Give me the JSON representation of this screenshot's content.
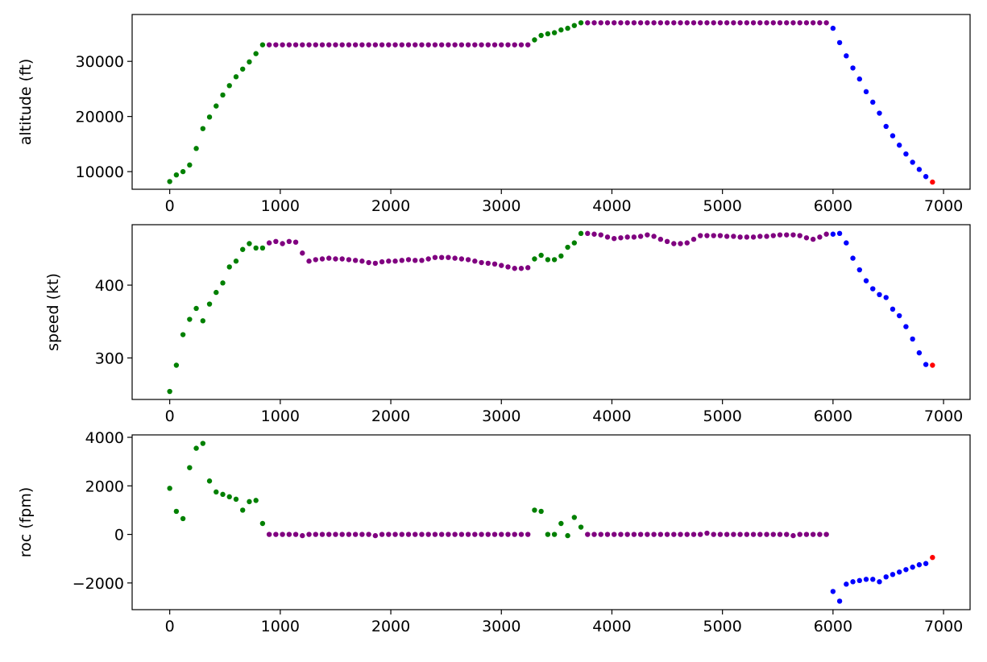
{
  "chart_data": [
    {
      "type": "scatter",
      "title": "",
      "xlabel": "",
      "ylabel": "altitude (ft)",
      "xlim": [
        -340,
        7240
      ],
      "ylim": [
        6800,
        38500
      ],
      "xticks": [
        0,
        1000,
        2000,
        3000,
        4000,
        5000,
        6000,
        7000
      ],
      "xtick_labels": [
        "0",
        "1000",
        "2000",
        "3000",
        "4000",
        "5000",
        "6000",
        "7000"
      ],
      "yticks": [
        10000,
        20000,
        30000
      ],
      "ytick_labels": [
        "10000",
        "20000",
        "30000"
      ],
      "grid": false,
      "series": [
        {
          "color": "#008000",
          "x": [
            0,
            60,
            120,
            180,
            240,
            300,
            360,
            420,
            480,
            540,
            600,
            660,
            720,
            780,
            840,
            3300,
            3360,
            3420,
            3480,
            3540,
            3600,
            3660,
            3720
          ],
          "y": [
            8200,
            9400,
            10000,
            11200,
            14200,
            17800,
            19900,
            21900,
            23900,
            25600,
            27200,
            28600,
            29900,
            31400,
            33000,
            33900,
            34700,
            35000,
            35200,
            35700,
            36000,
            36500,
            37000
          ]
        },
        {
          "color": "#800080",
          "x": [
            900,
            960,
            1020,
            1080,
            1140,
            1200,
            1260,
            1320,
            1380,
            1440,
            1500,
            1560,
            1620,
            1680,
            1740,
            1800,
            1860,
            1920,
            1980,
            2040,
            2100,
            2160,
            2220,
            2280,
            2340,
            2400,
            2460,
            2520,
            2580,
            2640,
            2700,
            2760,
            2820,
            2880,
            2940,
            3000,
            3060,
            3120,
            3180,
            3240,
            3780,
            3840,
            3900,
            3960,
            4020,
            4080,
            4140,
            4200,
            4260,
            4320,
            4380,
            4440,
            4500,
            4560,
            4620,
            4680,
            4740,
            4800,
            4860,
            4920,
            4980,
            5040,
            5100,
            5160,
            5220,
            5280,
            5340,
            5400,
            5460,
            5520,
            5580,
            5640,
            5700,
            5760,
            5820,
            5880,
            5940
          ],
          "y": [
            33000,
            33000,
            33000,
            33000,
            33000,
            33000,
            33000,
            33000,
            33000,
            33000,
            33000,
            33000,
            33000,
            33000,
            33000,
            33000,
            33000,
            33000,
            33000,
            33000,
            33000,
            33000,
            33000,
            33000,
            33000,
            33000,
            33000,
            33000,
            33000,
            33000,
            33000,
            33000,
            33000,
            33000,
            33000,
            33000,
            33000,
            33000,
            33000,
            33000,
            37000,
            37000,
            37000,
            37000,
            37000,
            37000,
            37000,
            37000,
            37000,
            37000,
            37000,
            37000,
            37000,
            37000,
            37000,
            37000,
            37000,
            37000,
            37000,
            37000,
            37000,
            37000,
            37000,
            37000,
            37000,
            37000,
            37000,
            37000,
            37000,
            37000,
            37000,
            37000,
            37000,
            37000,
            37000,
            37000,
            37000
          ]
        },
        {
          "color": "#0000ff",
          "x": [
            6000,
            6060,
            6120,
            6180,
            6240,
            6300,
            6360,
            6420,
            6480,
            6540,
            6600,
            6660,
            6720,
            6780,
            6840
          ],
          "y": [
            36000,
            33400,
            31000,
            28800,
            26800,
            24500,
            22600,
            20600,
            18200,
            16500,
            14800,
            13200,
            11700,
            10400,
            9100
          ]
        },
        {
          "color": "#ff0000",
          "x": [
            6900
          ],
          "y": [
            8100
          ]
        }
      ]
    },
    {
      "type": "scatter",
      "title": "",
      "xlabel": "",
      "ylabel": "speed (kt)",
      "xlim": [
        -340,
        7240
      ],
      "ylim": [
        243,
        483
      ],
      "xticks": [
        0,
        1000,
        2000,
        3000,
        4000,
        5000,
        6000,
        7000
      ],
      "xtick_labels": [
        "0",
        "1000",
        "2000",
        "3000",
        "4000",
        "5000",
        "6000",
        "7000"
      ],
      "yticks": [
        300,
        400
      ],
      "ytick_labels": [
        "300",
        "400"
      ],
      "grid": false,
      "series": [
        {
          "color": "#008000",
          "x": [
            0,
            60,
            120,
            180,
            240,
            300,
            360,
            420,
            480,
            540,
            600,
            660,
            720,
            780,
            840,
            3300,
            3360,
            3420,
            3480,
            3540,
            3600,
            3660,
            3720
          ],
          "y": [
            254,
            290,
            332,
            353,
            368,
            351,
            374,
            390,
            403,
            425,
            433,
            449,
            457,
            451,
            451,
            436,
            441,
            435,
            435,
            440,
            452,
            458,
            471
          ]
        },
        {
          "color": "#800080",
          "x": [
            900,
            960,
            1020,
            1080,
            1140,
            1200,
            1260,
            1320,
            1380,
            1440,
            1500,
            1560,
            1620,
            1680,
            1740,
            1800,
            1860,
            1920,
            1980,
            2040,
            2100,
            2160,
            2220,
            2280,
            2340,
            2400,
            2460,
            2520,
            2580,
            2640,
            2700,
            2760,
            2820,
            2880,
            2940,
            3000,
            3060,
            3120,
            3180,
            3240,
            3780,
            3840,
            3900,
            3960,
            4020,
            4080,
            4140,
            4200,
            4260,
            4320,
            4380,
            4440,
            4500,
            4560,
            4620,
            4680,
            4740,
            4800,
            4860,
            4920,
            4980,
            5040,
            5100,
            5160,
            5220,
            5280,
            5340,
            5400,
            5460,
            5520,
            5580,
            5640,
            5700,
            5760,
            5820,
            5880,
            5940
          ],
          "y": [
            458,
            460,
            457,
            460,
            459,
            444,
            433,
            435,
            436,
            437,
            436,
            436,
            435,
            434,
            433,
            431,
            430,
            432,
            433,
            433,
            434,
            435,
            434,
            434,
            436,
            438,
            438,
            438,
            437,
            436,
            435,
            433,
            431,
            430,
            429,
            427,
            425,
            423,
            423,
            424,
            471,
            470,
            469,
            466,
            464,
            465,
            466,
            466,
            467,
            469,
            467,
            463,
            460,
            457,
            457,
            458,
            463,
            468,
            468,
            468,
            468,
            467,
            467,
            466,
            466,
            466,
            467,
            467,
            468,
            469,
            469,
            469,
            468,
            465,
            463,
            466,
            470
          ]
        },
        {
          "color": "#0000ff",
          "x": [
            6000,
            6060,
            6120,
            6180,
            6240,
            6300,
            6360,
            6420,
            6480,
            6540,
            6600,
            6660,
            6720,
            6780,
            6840
          ],
          "y": [
            470,
            471,
            458,
            437,
            421,
            406,
            395,
            387,
            383,
            367,
            358,
            343,
            326,
            307,
            291
          ]
        },
        {
          "color": "#ff0000",
          "x": [
            6900
          ],
          "y": [
            290
          ]
        }
      ]
    },
    {
      "type": "scatter",
      "title": "",
      "xlabel": "",
      "ylabel": "roc (fpm)",
      "xlim": [
        -340,
        7240
      ],
      "ylim": [
        -3100,
        4100
      ],
      "xticks": [
        0,
        1000,
        2000,
        3000,
        4000,
        5000,
        6000,
        7000
      ],
      "xtick_labels": [
        "0",
        "1000",
        "2000",
        "3000",
        "4000",
        "5000",
        "6000",
        "7000"
      ],
      "yticks": [
        -2000,
        0,
        2000,
        4000
      ],
      "ytick_labels": [
        "−2000",
        "0",
        "2000",
        "4000"
      ],
      "grid": false,
      "series": [
        {
          "color": "#008000",
          "x": [
            0,
            60,
            120,
            180,
            240,
            300,
            360,
            420,
            480,
            540,
            600,
            660,
            720,
            780,
            840,
            3300,
            3360,
            3420,
            3480,
            3540,
            3600,
            3660,
            3720
          ],
          "y": [
            1900,
            950,
            650,
            2750,
            3550,
            3750,
            2200,
            1750,
            1650,
            1550,
            1450,
            1000,
            1350,
            1400,
            450,
            1000,
            950,
            0,
            0,
            450,
            -50,
            700,
            300
          ]
        },
        {
          "color": "#800080",
          "x": [
            900,
            960,
            1020,
            1080,
            1140,
            1200,
            1260,
            1320,
            1380,
            1440,
            1500,
            1560,
            1620,
            1680,
            1740,
            1800,
            1860,
            1920,
            1980,
            2040,
            2100,
            2160,
            2220,
            2280,
            2340,
            2400,
            2460,
            2520,
            2580,
            2640,
            2700,
            2760,
            2820,
            2880,
            2940,
            3000,
            3060,
            3120,
            3180,
            3240,
            3780,
            3840,
            3900,
            3960,
            4020,
            4080,
            4140,
            4200,
            4260,
            4320,
            4380,
            4440,
            4500,
            4560,
            4620,
            4680,
            4740,
            4800,
            4860,
            4920,
            4980,
            5040,
            5100,
            5160,
            5220,
            5280,
            5340,
            5400,
            5460,
            5520,
            5580,
            5640,
            5700,
            5760,
            5820,
            5880,
            5940
          ],
          "y": [
            0,
            0,
            0,
            0,
            0,
            -50,
            0,
            0,
            0,
            0,
            0,
            0,
            0,
            0,
            0,
            0,
            -50,
            0,
            0,
            0,
            0,
            0,
            0,
            0,
            0,
            0,
            0,
            0,
            0,
            0,
            0,
            0,
            0,
            0,
            0,
            0,
            0,
            0,
            0,
            0,
            0,
            0,
            0,
            0,
            0,
            0,
            0,
            0,
            0,
            0,
            0,
            0,
            0,
            0,
            0,
            0,
            0,
            0,
            50,
            0,
            0,
            0,
            0,
            0,
            0,
            0,
            0,
            0,
            0,
            0,
            0,
            -50,
            0,
            0,
            0,
            0,
            0
          ]
        },
        {
          "color": "#0000ff",
          "x": [
            6000,
            6060,
            6120,
            6180,
            6240,
            6300,
            6360,
            6420,
            6480,
            6540,
            6600,
            6660,
            6720,
            6780,
            6840
          ],
          "y": [
            -2350,
            -2750,
            -2050,
            -1950,
            -1900,
            -1850,
            -1850,
            -1950,
            -1750,
            -1650,
            -1550,
            -1450,
            -1350,
            -1250,
            -1200
          ]
        },
        {
          "color": "#ff0000",
          "x": [
            6900
          ],
          "y": [
            -950
          ]
        }
      ]
    }
  ]
}
